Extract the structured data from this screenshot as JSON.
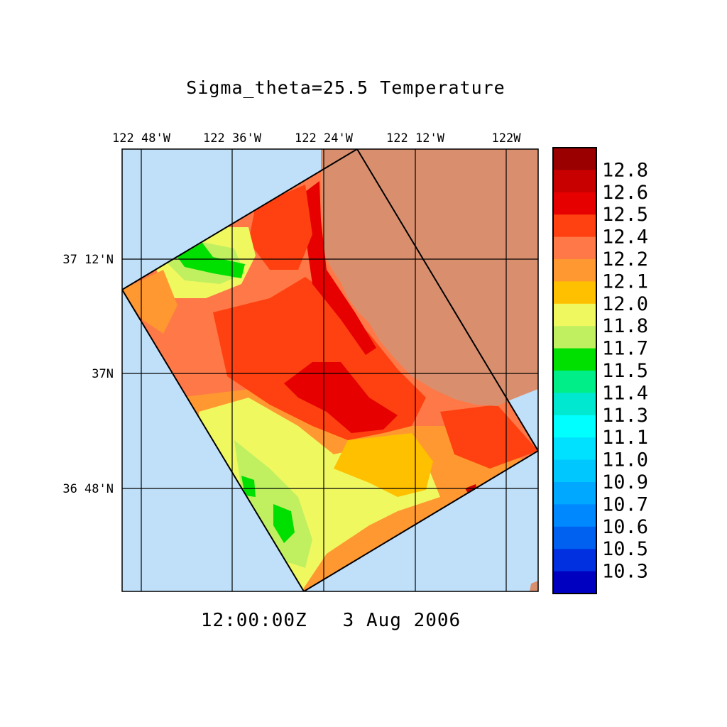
{
  "title": "Sigma_theta=25.5 Temperature",
  "timestamp": "12:00:00Z   3 Aug 2006",
  "x_tick_labels": [
    "122 48'W",
    "122 36'W",
    "122 24'W",
    "122 12'W",
    "122W"
  ],
  "y_tick_labels": [
    "37 12'N",
    "37N",
    "36 48'N"
  ],
  "colorbar_labels": [
    "12.8",
    "12.6",
    "12.5",
    "12.4",
    "12.2",
    "12.1",
    "12.0",
    "11.8",
    "11.7",
    "11.5",
    "11.4",
    "11.3",
    "11.1",
    "11.0",
    "10.9",
    "10.7",
    "10.6",
    "10.5",
    "10.3"
  ],
  "colors": {
    "ocean": "#c0e0fa",
    "land": "#d98f6e",
    "colorbar": [
      "#9a0000",
      "#c80000",
      "#e60000",
      "#ff4010",
      "#ff7848",
      "#ff9830",
      "#ffc000",
      "#f0f860",
      "#c0f060",
      "#00e000",
      "#00ee88",
      "#00e8d0",
      "#00ffff",
      "#00e0ff",
      "#00c8ff",
      "#00a8ff",
      "#0088ff",
      "#0060f0",
      "#0030e0",
      "#0000c0"
    ]
  }
}
